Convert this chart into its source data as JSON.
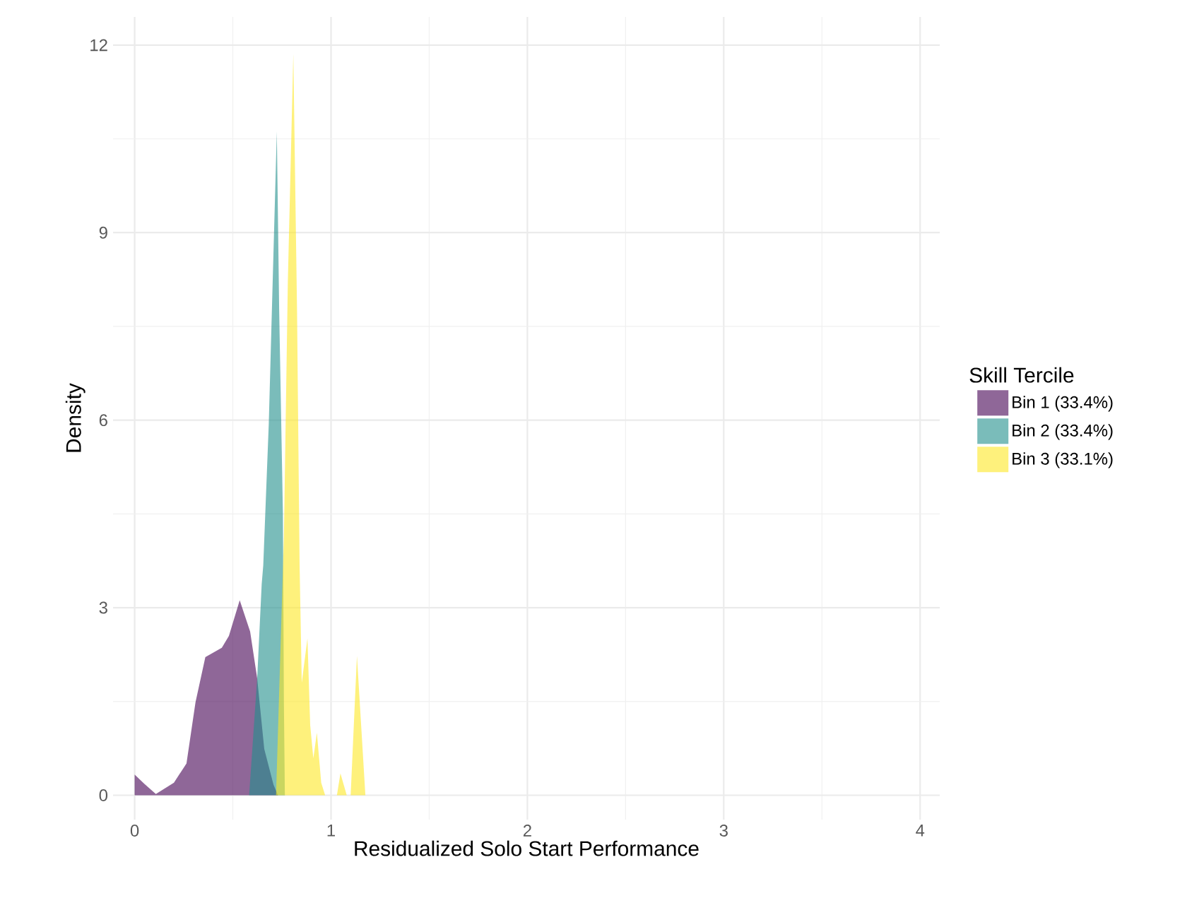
{
  "chart_data": {
    "type": "area",
    "xlabel": "Residualized Solo Start Performance",
    "ylabel": "Density",
    "legend_title": "Skill Tercile",
    "legend": "right",
    "grid": true,
    "xlim": [
      -0.11,
      4.1
    ],
    "ylim": [
      -0.39,
      12.45
    ],
    "xticks": [
      0,
      1,
      2,
      3,
      4
    ],
    "yticks": [
      0,
      3,
      6,
      9,
      12
    ],
    "series": [
      {
        "name": "Bin 1 (33.4%)",
        "color": "#440154",
        "x": [
          0,
          0.05,
          0.108,
          0.2,
          0.264,
          0.31,
          0.36,
          0.444,
          0.48,
          0.535,
          0.588,
          0.624,
          0.66,
          0.707,
          0.73
        ],
        "values": [
          0.33,
          0.18,
          0.02,
          0.2,
          0.51,
          1.49,
          2.21,
          2.36,
          2.55,
          3.12,
          2.62,
          1.87,
          0.74,
          0.17,
          0
        ]
      },
      {
        "name": "Bin 2 (33.4%)",
        "color": "#21908c",
        "x": [
          0.583,
          0.624,
          0.647,
          0.655,
          0.683,
          0.724,
          0.736,
          0.755,
          0.76,
          0.765
        ],
        "values": [
          0,
          1.87,
          3.38,
          3.68,
          5.94,
          10.62,
          7.75,
          4.5,
          1.5,
          0
        ]
      },
      {
        "name": "Bin 3 (33.1%)",
        "color": "#fde725",
        "x": [
          0.72,
          0.76,
          0.78,
          0.808,
          0.827,
          0.84,
          0.851,
          0.88,
          0.894,
          0.91,
          0.928,
          0.95,
          0.97,
          1.03,
          1.048,
          1.08,
          1.1,
          1.132,
          1.175
        ],
        "values": [
          0,
          4.13,
          8.2,
          11.86,
          7.75,
          3.68,
          1.8,
          2.51,
          1.12,
          0.59,
          1.0,
          0.2,
          0,
          0,
          0.35,
          0,
          0,
          2.23,
          0
        ]
      }
    ]
  }
}
